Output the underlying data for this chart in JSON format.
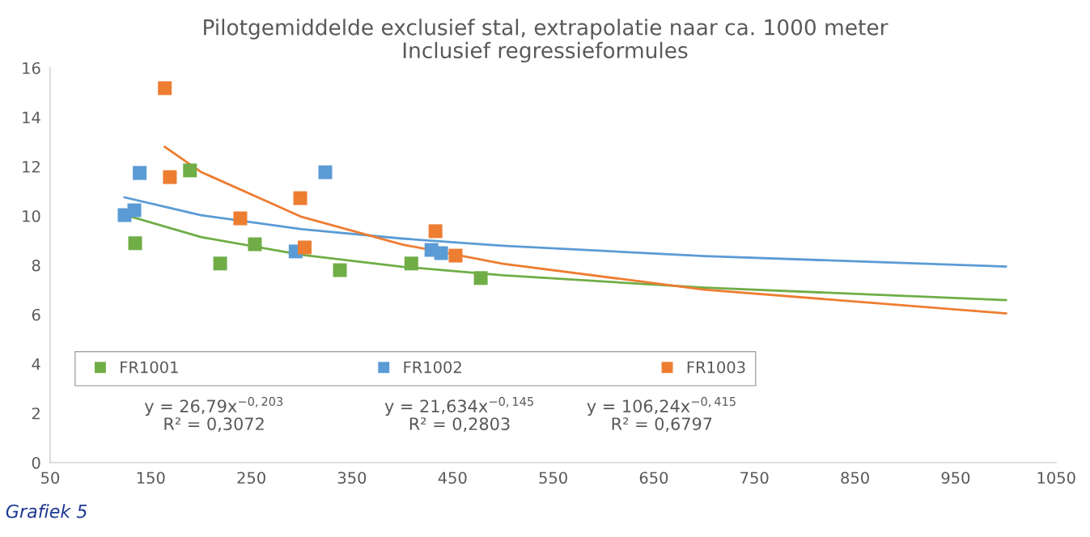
{
  "chart_data": {
    "type": "scatter",
    "title": "Pilotgemiddelde exclusief stal, extrapolatie naar ca. 1000 meter\nInclusief regressieformules",
    "xlim": [
      50,
      1050
    ],
    "xticks": [
      50,
      150,
      250,
      350,
      450,
      550,
      650,
      750,
      850,
      950,
      1050
    ],
    "ylim": [
      0,
      16
    ],
    "yticks": [
      0,
      2,
      4,
      6,
      8,
      10,
      12,
      14,
      16
    ],
    "grid": false,
    "legend": "bottom left",
    "marker": "square",
    "series": [
      {
        "name": "FR1001",
        "color": "#70ad47",
        "x": [
          134.5,
          189,
          219,
          253.5,
          338,
          409,
          478
        ],
        "values": [
          8.89,
          11.84,
          8.07,
          8.85,
          7.8,
          8.07,
          7.48
        ]
      },
      {
        "name": "FR1002",
        "color": "#5b9bd5",
        "x": [
          124,
          133.7,
          139,
          294,
          323.5,
          429,
          438.6
        ],
        "values": [
          10.03,
          10.23,
          11.74,
          8.56,
          11.77,
          8.62,
          8.49
        ]
      },
      {
        "name": "FR1003",
        "color": "#ed7d31",
        "x": [
          164,
          169,
          239,
          298.6,
          303,
          433,
          453
        ],
        "values": [
          15.18,
          11.57,
          9.9,
          10.72,
          8.72,
          9.38,
          8.39
        ]
      },
      {
        "type": "line",
        "marker": "none",
        "color": "#70ad47",
        "x": [
          130,
          200,
          300,
          400,
          500,
          700,
          1000
        ],
        "values": [
          9.97,
          9.14,
          8.42,
          7.94,
          7.59,
          7.09,
          6.59
        ]
      },
      {
        "type": "line",
        "marker": "none",
        "color": "#5b9bd5",
        "x": [
          124,
          200,
          300,
          400,
          500,
          700,
          1000
        ],
        "values": [
          10.75,
          10.03,
          9.46,
          9.08,
          8.79,
          8.37,
          7.95
        ]
      },
      {
        "type": "line",
        "marker": "none",
        "color": "#ed7d31",
        "x": [
          164,
          200,
          300,
          400,
          500,
          700,
          1000
        ],
        "values": [
          12.8,
          11.78,
          9.96,
          8.84,
          8.06,
          7.01,
          6.05
        ]
      }
    ],
    "annotations": [
      "y = 26,79x$^{−0,203}$\nR² = 0,3072",
      "y = 21,634x$^{−0,145}$\nR² = 0,2803",
      "y = 106,24x$^{−0,415}$\nR² = 0,6797",
      "Grafiek 5"
    ]
  }
}
